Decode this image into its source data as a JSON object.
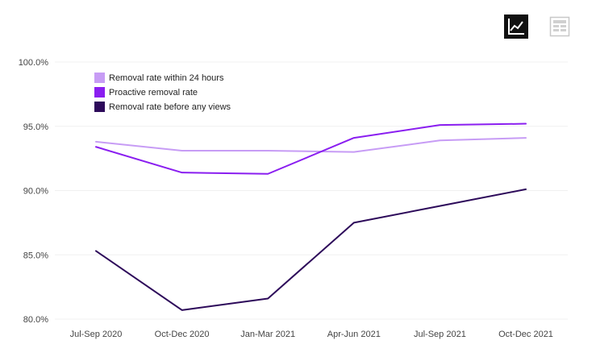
{
  "toolbar": {
    "buttons": [
      {
        "name": "chart-view",
        "icon": "line-chart-icon",
        "active": true
      },
      {
        "name": "table-view",
        "icon": "table-icon",
        "active": false
      }
    ]
  },
  "chart_data": {
    "type": "line",
    "title": "",
    "xlabel": "",
    "ylabel": "",
    "categories": [
      "Jul-Sep 2020",
      "Oct-Dec 2020",
      "Jan-Mar 2021",
      "Apr-Jun 2021",
      "Jul-Sep 2021",
      "Oct-Dec 2021"
    ],
    "y_ticks": [
      "100.0%",
      "95.0%",
      "90.0%",
      "85.0%",
      "80.0%"
    ],
    "ylim": [
      80,
      100
    ],
    "grid": true,
    "legend_position": "top-left",
    "series": [
      {
        "name": "Removal rate within 24 hours",
        "color": "#c79cf5",
        "values": [
          93.8,
          93.1,
          93.1,
          93.0,
          93.9,
          94.1
        ]
      },
      {
        "name": "Proactive removal rate",
        "color": "#8a1ef0",
        "values": [
          93.4,
          91.4,
          91.3,
          94.1,
          95.1,
          95.2
        ]
      },
      {
        "name": "Removal rate before any views",
        "color": "#2d0a5a",
        "values": [
          85.3,
          80.7,
          81.6,
          87.5,
          88.8,
          90.1
        ]
      }
    ]
  }
}
